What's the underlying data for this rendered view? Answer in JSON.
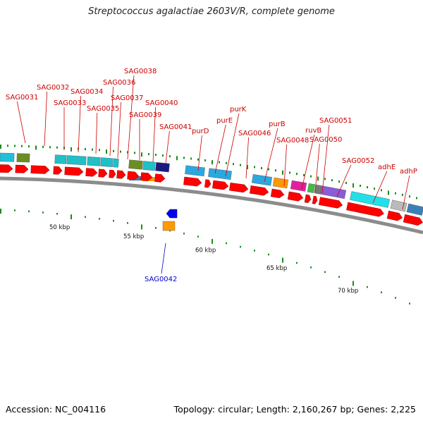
{
  "title": "Streptococcus agalactiae 2603V/R, complete genome",
  "footer": {
    "accession": "Accession: NC_004116",
    "stats": "Topology: circular; Length: 2,160,267 bp; Genes: 2,225"
  },
  "colors": {
    "cds": "#ff0000",
    "label_top": "#cc0000",
    "label_bottom": "#0000cc",
    "backbone": "#8c8c8c",
    "tick": "#1a8c1a"
  },
  "scale": {
    "tick_labels": [
      {
        "label": "50 kbp",
        "pos": 50
      },
      {
        "label": "55 kbp",
        "pos": 55
      },
      {
        "label": "60 kbp",
        "pos": 60
      },
      {
        "label": "65 kbp",
        "pos": 65
      },
      {
        "label": "70 kbp",
        "pos": 70
      }
    ]
  },
  "genes_top": [
    {
      "name": "SAG0031"
    },
    {
      "name": "SAG0032"
    },
    {
      "name": "SAG0033"
    },
    {
      "name": "SAG0034"
    },
    {
      "name": "SAG0035"
    },
    {
      "name": "SAG0036"
    },
    {
      "name": "SAG0037"
    },
    {
      "name": "SAG0038"
    },
    {
      "name": "SAG0039"
    },
    {
      "name": "SAG0040"
    },
    {
      "name": "SAG0041"
    },
    {
      "name": "purD"
    },
    {
      "name": "purE"
    },
    {
      "name": "purK"
    },
    {
      "name": "SAG0046"
    },
    {
      "name": "purB"
    },
    {
      "name": "SAG0048"
    },
    {
      "name": "ruvB"
    },
    {
      "name": "SAG0050"
    },
    {
      "name": "SAG0051"
    },
    {
      "name": "SAG0052"
    },
    {
      "name": "adhE"
    },
    {
      "name": "adhP"
    }
  ],
  "genes_bottom": [
    {
      "name": "SAG0042"
    }
  ]
}
